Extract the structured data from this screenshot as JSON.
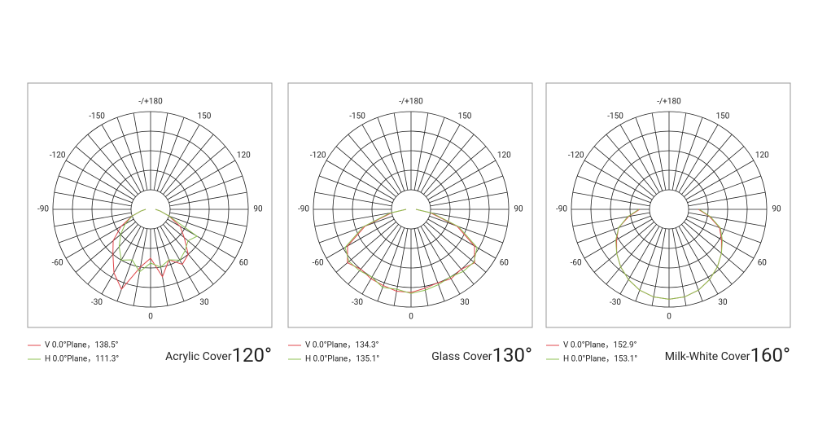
{
  "chart_data": [
    {
      "type": "polar",
      "title": "Acrylic Cover",
      "beam_angle": "120°",
      "thetalim": [
        -180,
        180
      ],
      "thetaticks": [
        {
          "value": 180,
          "label": "-/+180"
        },
        150,
        120,
        90,
        60,
        30,
        0,
        -30,
        -60,
        -90,
        -120,
        -150
      ],
      "thetagrid": [
        -170,
        -160,
        -150,
        -140,
        -130,
        -120,
        -110,
        -100,
        -90,
        -80,
        -70,
        -60,
        -50,
        -40,
        -30,
        -20,
        -10,
        0,
        10,
        20,
        30,
        40,
        50,
        60,
        70,
        80,
        90,
        100,
        110,
        120,
        130,
        140,
        150,
        160,
        170,
        180
      ],
      "rlim": [
        0,
        1
      ],
      "rgrid": [
        0.2,
        0.4,
        0.6,
        0.8,
        1
      ],
      "theta": [
        -90,
        -80,
        -70,
        -60,
        -50,
        -40,
        -30,
        -20,
        -10,
        0,
        10,
        20,
        30,
        40,
        50,
        60,
        70,
        80,
        90
      ],
      "series": [
        {
          "name": "V 0.0°Plane，138.5°",
          "color": "#e0474c",
          "values": [
            0.05,
            0.1,
            0.2,
            0.35,
            0.5,
            0.6,
            0.75,
            0.87,
            0.6,
            0.5,
            0.7,
            0.55,
            0.65,
            0.6,
            0.45,
            0.35,
            0.2,
            0.1,
            0.05
          ]
        },
        {
          "name": "H 0.0°Plane，111.3°",
          "color": "#8cc152",
          "values": [
            0.05,
            0.1,
            0.2,
            0.3,
            0.4,
            0.5,
            0.6,
            0.55,
            0.65,
            0.55,
            0.6,
            0.55,
            0.6,
            0.55,
            0.5,
            0.55,
            0.2,
            0.1,
            0.05
          ]
        }
      ]
    },
    {
      "type": "polar",
      "title": "Glass Cover",
      "beam_angle": "130°",
      "thetalim": [
        -180,
        180
      ],
      "thetaticks": [
        {
          "value": 180,
          "label": "-/+180"
        },
        150,
        120,
        90,
        60,
        30,
        0,
        -30,
        -60,
        -90,
        -120,
        -150
      ],
      "thetagrid": [
        -170,
        -160,
        -150,
        -140,
        -130,
        -120,
        -110,
        -100,
        -90,
        -80,
        -70,
        -60,
        -50,
        -40,
        -30,
        -20,
        -10,
        0,
        10,
        20,
        30,
        40,
        50,
        60,
        70,
        80,
        90,
        100,
        110,
        120,
        130,
        140,
        150,
        160,
        170,
        180
      ],
      "rlim": [
        0,
        1
      ],
      "rgrid": [
        0.2,
        0.4,
        0.6,
        0.8,
        1
      ],
      "theta": [
        -90,
        -80,
        -70,
        -60,
        -50,
        -40,
        -30,
        -20,
        -10,
        0,
        10,
        20,
        30,
        40,
        50,
        60,
        70,
        80,
        90
      ],
      "series": [
        {
          "name": "V 0.0°Plane，134.3°",
          "color": "#e0474c",
          "values": [
            0.05,
            0.2,
            0.5,
            0.75,
            0.85,
            0.8,
            0.82,
            0.83,
            0.85,
            0.85,
            0.82,
            0.8,
            0.82,
            0.8,
            0.85,
            0.75,
            0.5,
            0.2,
            0.05
          ]
        },
        {
          "name": "H 0.0°Plane，135.1°",
          "color": "#8cc152",
          "values": [
            0.05,
            0.22,
            0.52,
            0.78,
            0.83,
            0.82,
            0.8,
            0.85,
            0.83,
            0.86,
            0.84,
            0.82,
            0.8,
            0.83,
            0.84,
            0.78,
            0.52,
            0.22,
            0.05
          ]
        }
      ]
    },
    {
      "type": "polar",
      "title": "Milk-White Cover",
      "beam_angle": "160°",
      "thetalim": [
        -180,
        180
      ],
      "thetaticks": [
        {
          "value": 180,
          "label": "-/+180"
        },
        150,
        120,
        90,
        60,
        30,
        0,
        -30,
        -60,
        -90,
        -120,
        -150
      ],
      "thetagrid": [
        -170,
        -160,
        -150,
        -140,
        -130,
        -120,
        -110,
        -100,
        -90,
        -80,
        -70,
        -60,
        -50,
        -40,
        -30,
        -20,
        -10,
        0,
        10,
        20,
        30,
        40,
        50,
        60,
        70,
        80,
        90,
        100,
        110,
        120,
        130,
        140,
        150,
        160,
        170,
        180
      ],
      "rlim": [
        0,
        1
      ],
      "rgrid": [
        0.2,
        0.4,
        0.6,
        0.8,
        1
      ],
      "theta": [
        -90,
        -80,
        -70,
        -60,
        -50,
        -40,
        -30,
        -20,
        -10,
        0,
        10,
        20,
        30,
        40,
        50,
        60,
        70,
        80,
        90
      ],
      "series": [
        {
          "name": "V 0.0°Plane，152.9°",
          "color": "#e0474c",
          "values": [
            0.3,
            0.42,
            0.55,
            0.62,
            0.7,
            0.77,
            0.83,
            0.88,
            0.91,
            0.92,
            0.91,
            0.88,
            0.83,
            0.77,
            0.7,
            0.62,
            0.55,
            0.42,
            0.3
          ]
        },
        {
          "name": "H 0.0°Plane，153.1°",
          "color": "#8cc152",
          "values": [
            0.31,
            0.43,
            0.55,
            0.63,
            0.7,
            0.77,
            0.83,
            0.88,
            0.91,
            0.92,
            0.91,
            0.88,
            0.83,
            0.77,
            0.7,
            0.63,
            0.56,
            0.43,
            0.31
          ]
        }
      ]
    }
  ]
}
